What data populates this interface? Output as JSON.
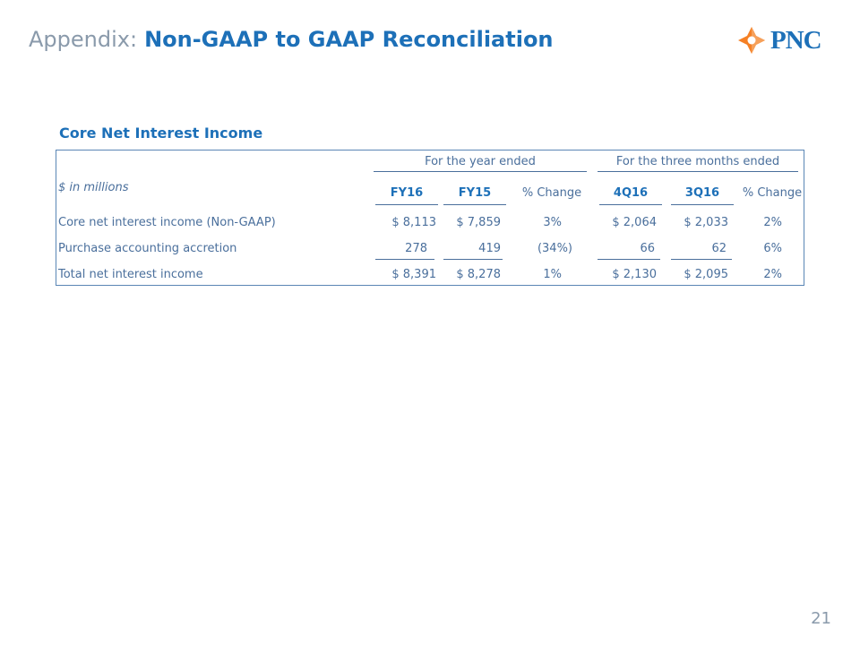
{
  "header": {
    "lead": "Appendix:",
    "title": "Non-GAAP to GAAP Reconciliation",
    "logo_text": "PNC",
    "logo_icon": "pnc-star-icon",
    "logo_color": "#f58025"
  },
  "section_title": "Core Net Interest Income",
  "table": {
    "group_labels": [
      "For the year ended",
      "For the three months ended"
    ],
    "units_label": "$ in millions",
    "columns": [
      "FY16",
      "FY15",
      "% Change",
      "4Q16",
      "3Q16",
      "% Change"
    ],
    "rows": [
      {
        "label": "Core net interest income (Non-GAAP)",
        "values": [
          "$ 8,113",
          "$ 7,859",
          "3%",
          "$ 2,064",
          "$ 2,033",
          "2%"
        ]
      },
      {
        "label": "Purchase accounting accretion",
        "values": [
          "278",
          "419",
          "(34%)",
          "66",
          "62",
          "6%"
        ]
      },
      {
        "label": "Total net interest income",
        "values": [
          "$ 8,391",
          "$ 8,278",
          "1%",
          "$ 2,130",
          "$ 2,095",
          "2%"
        ]
      }
    ]
  },
  "page_number": "21"
}
